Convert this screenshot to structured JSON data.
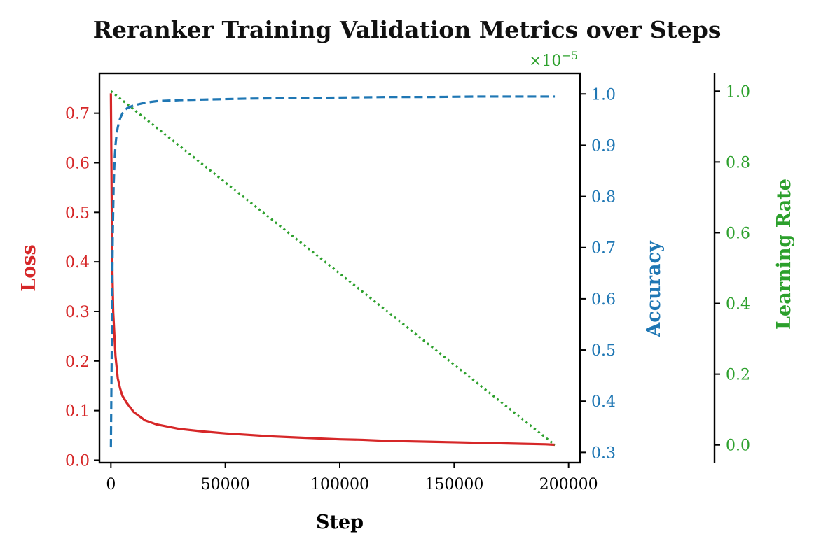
{
  "chart_data": {
    "type": "line",
    "title": "Reranker Training Validation Metrics over Steps",
    "xlabel": "Step",
    "xlim": [
      -5000,
      205000
    ],
    "xticks": [
      0,
      50000,
      100000,
      150000,
      200000
    ],
    "grid": false,
    "colors": {
      "loss": "#d62728",
      "accuracy": "#1f77b4",
      "learning_rate": "#2ca02c",
      "axis": "#000000"
    },
    "axes": [
      {
        "key": "loss",
        "label": "Loss",
        "side": "left",
        "ylim": [
          -0.005,
          0.78
        ],
        "ticks": [
          0.0,
          0.1,
          0.2,
          0.3,
          0.4,
          0.5,
          0.6,
          0.7
        ],
        "tick_labels": [
          "0.0",
          "0.1",
          "0.2",
          "0.3",
          "0.4",
          "0.5",
          "0.6",
          "0.7"
        ]
      },
      {
        "key": "accuracy",
        "label": "Accuracy",
        "side": "right",
        "ylim": [
          0.28,
          1.04
        ],
        "ticks": [
          0.3,
          0.4,
          0.5,
          0.6,
          0.7,
          0.8,
          0.9,
          1.0
        ],
        "tick_labels": [
          "0.3",
          "0.4",
          "0.5",
          "0.6",
          "0.7",
          "0.8",
          "0.9",
          "1.0"
        ]
      },
      {
        "key": "learning_rate",
        "label": "Learning Rate",
        "side": "right-offset",
        "ylim": [
          -0.05,
          1.05
        ],
        "ticks": [
          0.0,
          0.2,
          0.4,
          0.6,
          0.8,
          1.0
        ],
        "tick_labels": [
          "0.0",
          "0.2",
          "0.4",
          "0.6",
          "0.8",
          "1.0"
        ],
        "offset_label": "×10",
        "offset_exponent": "−5"
      }
    ],
    "series": [
      {
        "axis": "loss",
        "style": "solid",
        "x": [
          0,
          500,
          1000,
          2000,
          3000,
          4000,
          5000,
          7000,
          10000,
          15000,
          20000,
          30000,
          40000,
          50000,
          60000,
          70000,
          80000,
          90000,
          100000,
          110000,
          120000,
          130000,
          140000,
          150000,
          160000,
          170000,
          180000,
          190000,
          194000
        ],
        "values": [
          0.74,
          0.42,
          0.3,
          0.21,
          0.165,
          0.145,
          0.13,
          0.115,
          0.097,
          0.08,
          0.072,
          0.063,
          0.058,
          0.054,
          0.051,
          0.048,
          0.046,
          0.044,
          0.042,
          0.041,
          0.039,
          0.038,
          0.037,
          0.036,
          0.035,
          0.034,
          0.033,
          0.032,
          0.031
        ]
      },
      {
        "axis": "accuracy",
        "style": "dashed",
        "x": [
          0,
          400,
          800,
          1200,
          1600,
          2000,
          2500,
          3000,
          4000,
          5000,
          7000,
          10000,
          15000,
          20000,
          30000,
          40000,
          50000,
          60000,
          80000,
          100000,
          120000,
          140000,
          160000,
          180000,
          194000
        ],
        "values": [
          0.31,
          0.52,
          0.72,
          0.82,
          0.87,
          0.9,
          0.922,
          0.935,
          0.952,
          0.962,
          0.972,
          0.978,
          0.983,
          0.986,
          0.988,
          0.989,
          0.99,
          0.991,
          0.992,
          0.993,
          0.994,
          0.994,
          0.995,
          0.995,
          0.995
        ]
      },
      {
        "axis": "learning_rate",
        "style": "dotted",
        "x": [
          0,
          194000
        ],
        "values": [
          1.0,
          0.0
        ]
      }
    ]
  }
}
